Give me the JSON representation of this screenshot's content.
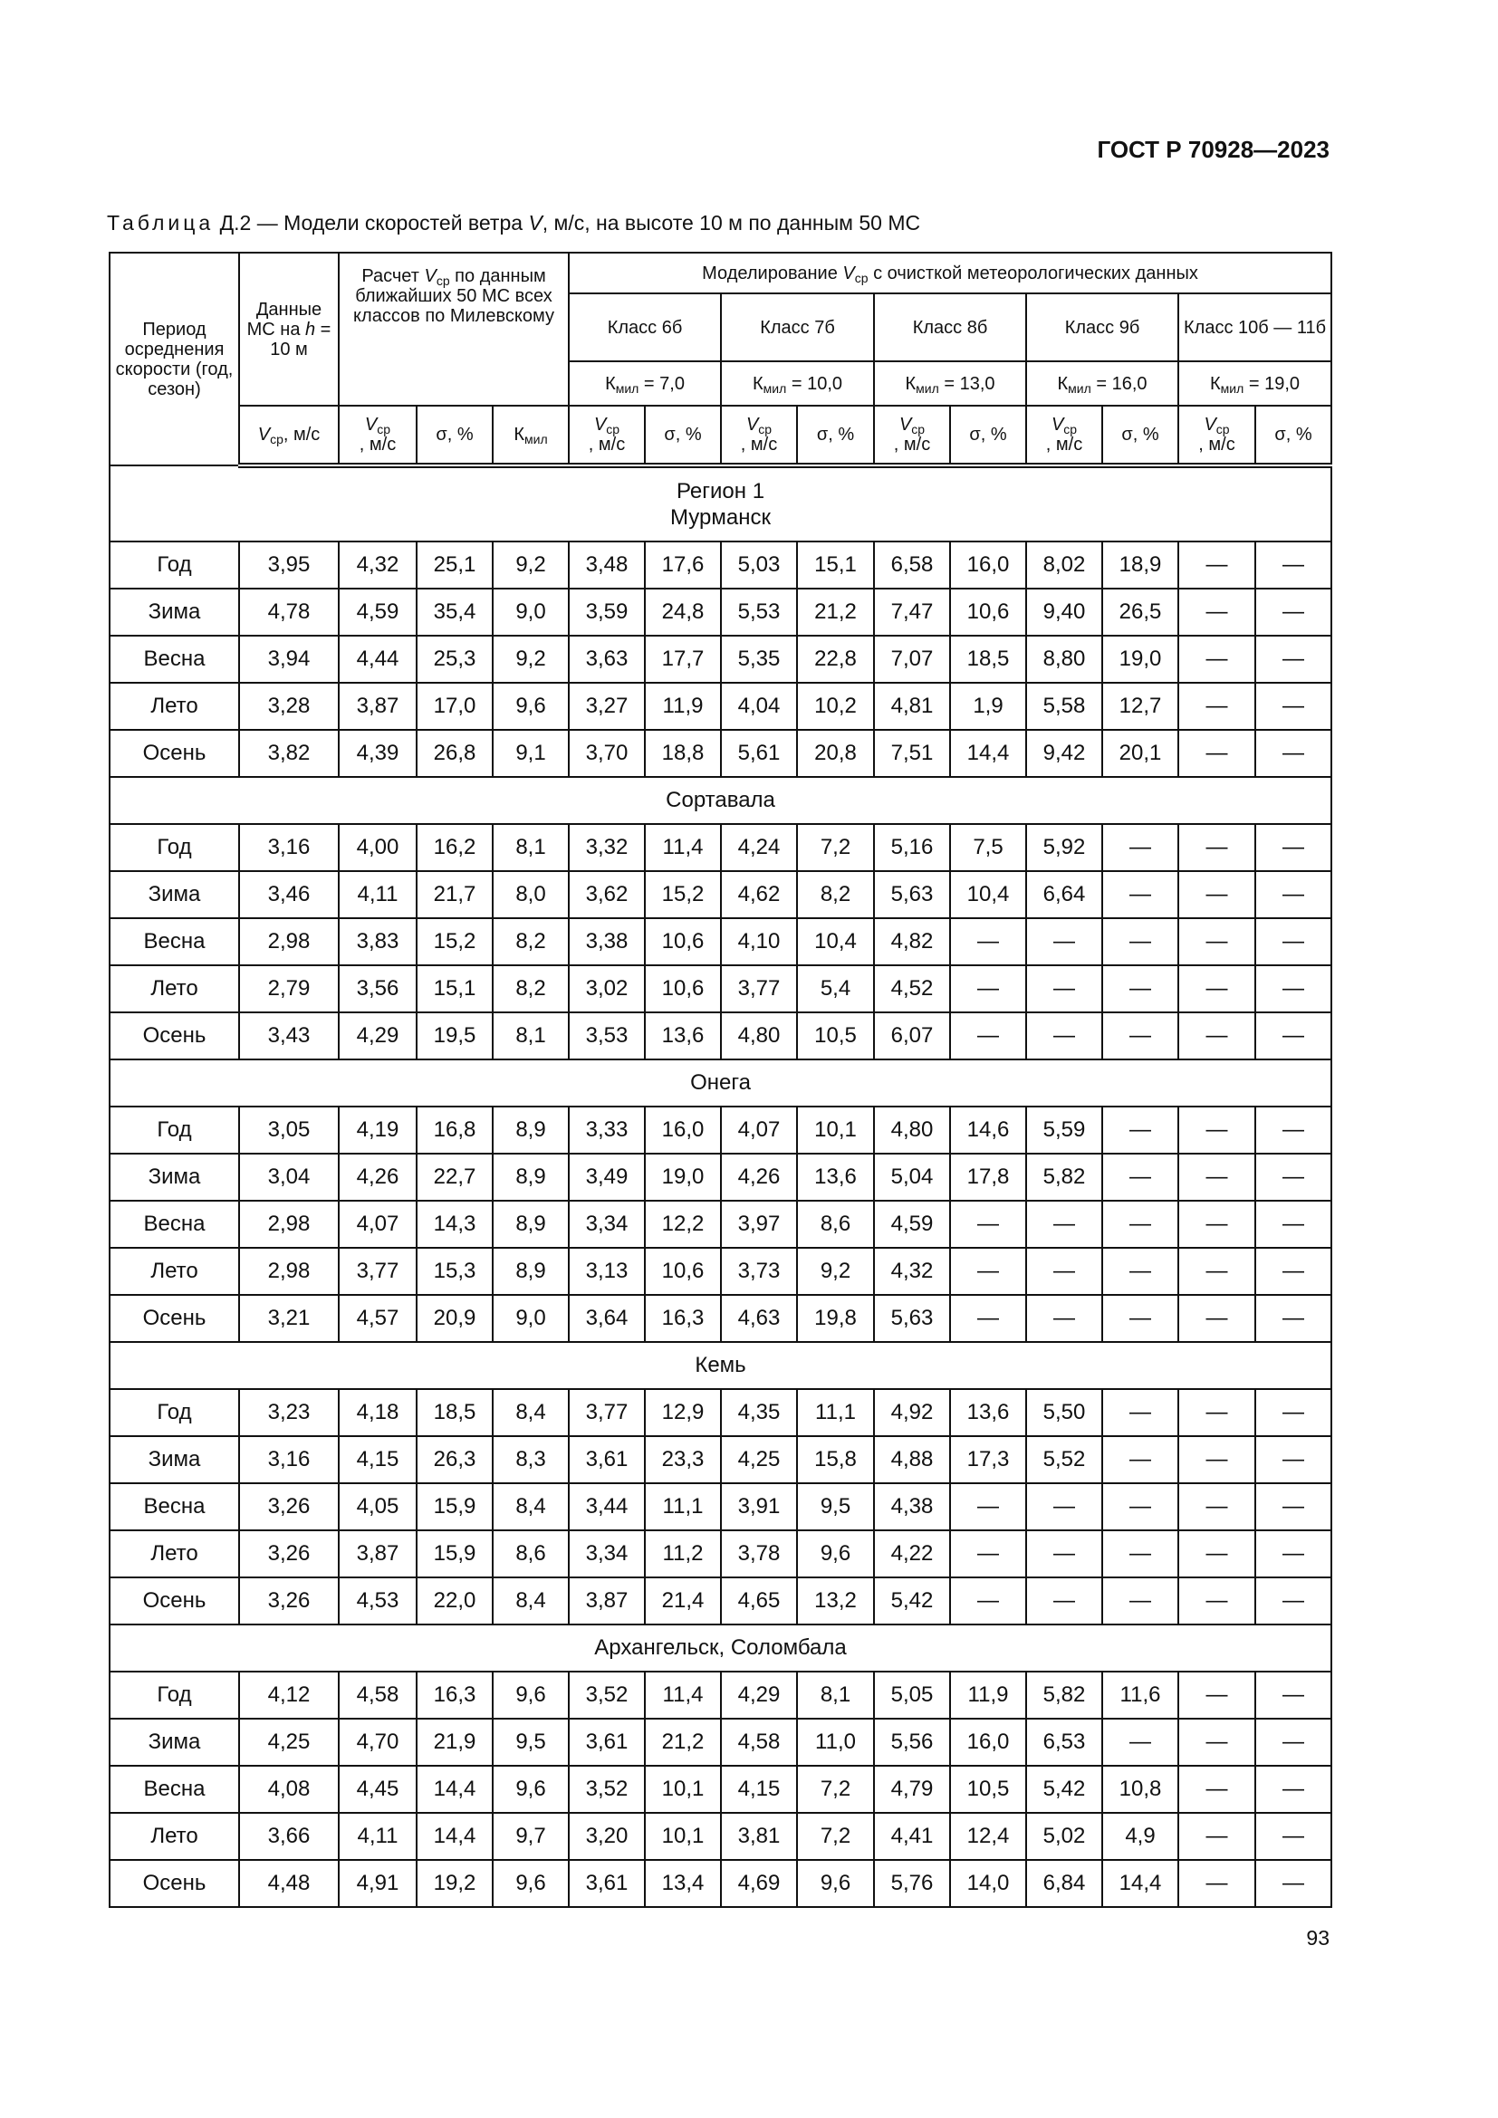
{
  "doc_code": "ГОСТ Р 70928—2023",
  "caption": {
    "word": "Таблица",
    "rest_pre": " Д.2 — Модели скоростей ветра ",
    "v": "V",
    "rest_post": ", м/с, на высоте 10 м по данным 50 МС"
  },
  "header": {
    "period": "Период осреднения скорости (год, сезон)",
    "ms_data_pre": "Данные МС на ",
    "ms_data_h": "h",
    "ms_data_post": " = 10 м",
    "calc_pre": "Расчет ",
    "calc_v": "V",
    "calc_sub": "ср",
    "calc_post": " по данным ближайших 50 МС всех классов по Милевскому",
    "model_pre": "Моделирование ",
    "model_v": "V",
    "model_sub": "ср",
    "model_post": " с очисткой метеорологических данных",
    "classes": [
      {
        "name": "Класс 6б",
        "k": "К",
        "k_sub": "мил",
        "k_val": " = 7,0"
      },
      {
        "name": "Класс 7б",
        "k": "К",
        "k_sub": "мил",
        "k_val": " = 10,0"
      },
      {
        "name": "Класс 8б",
        "k": "К",
        "k_sub": "мил",
        "k_val": " = 13,0"
      },
      {
        "name": "Класс 9б",
        "k": "К",
        "k_sub": "мил",
        "k_val": " = 16,0"
      },
      {
        "name": "Класс 10б — 11б",
        "k": "К",
        "k_sub": "мил",
        "k_val": " = 19,0"
      }
    ],
    "sub_v": "V",
    "sub_v_sub": "ср",
    "sub_v_unit_inline": ", м/с",
    "sub_v_unit": ", м/с",
    "sigma": "σ, %",
    "kmil": "К",
    "kmil_sub": "мил"
  },
  "sections": [
    {
      "title": [
        "Регион 1",
        "Мурманск"
      ],
      "rows": [
        {
          "period": "Год",
          "values": [
            "3,95",
            "4,32",
            "25,1",
            "9,2",
            "3,48",
            "17,6",
            "5,03",
            "15,1",
            "6,58",
            "16,0",
            "8,02",
            "18,9",
            "—",
            "—"
          ]
        },
        {
          "period": "Зима",
          "values": [
            "4,78",
            "4,59",
            "35,4",
            "9,0",
            "3,59",
            "24,8",
            "5,53",
            "21,2",
            "7,47",
            "10,6",
            "9,40",
            "26,5",
            "—",
            "—"
          ]
        },
        {
          "period": "Весна",
          "values": [
            "3,94",
            "4,44",
            "25,3",
            "9,2",
            "3,63",
            "17,7",
            "5,35",
            "22,8",
            "7,07",
            "18,5",
            "8,80",
            "19,0",
            "—",
            "—"
          ]
        },
        {
          "period": "Лето",
          "values": [
            "3,28",
            "3,87",
            "17,0",
            "9,6",
            "3,27",
            "11,9",
            "4,04",
            "10,2",
            "4,81",
            "1,9",
            "5,58",
            "12,7",
            "—",
            "—"
          ]
        },
        {
          "period": "Осень",
          "values": [
            "3,82",
            "4,39",
            "26,8",
            "9,1",
            "3,70",
            "18,8",
            "5,61",
            "20,8",
            "7,51",
            "14,4",
            "9,42",
            "20,1",
            "—",
            "—"
          ]
        }
      ]
    },
    {
      "title": [
        "Сортавала"
      ],
      "rows": [
        {
          "period": "Год",
          "values": [
            "3,16",
            "4,00",
            "16,2",
            "8,1",
            "3,32",
            "11,4",
            "4,24",
            "7,2",
            "5,16",
            "7,5",
            "5,92",
            "—",
            "—",
            "—"
          ]
        },
        {
          "period": "Зима",
          "values": [
            "3,46",
            "4,11",
            "21,7",
            "8,0",
            "3,62",
            "15,2",
            "4,62",
            "8,2",
            "5,63",
            "10,4",
            "6,64",
            "—",
            "—",
            "—"
          ]
        },
        {
          "period": "Весна",
          "values": [
            "2,98",
            "3,83",
            "15,2",
            "8,2",
            "3,38",
            "10,6",
            "4,10",
            "10,4",
            "4,82",
            "—",
            "—",
            "—",
            "—",
            "—"
          ]
        },
        {
          "period": "Лето",
          "values": [
            "2,79",
            "3,56",
            "15,1",
            "8,2",
            "3,02",
            "10,6",
            "3,77",
            "5,4",
            "4,52",
            "—",
            "—",
            "—",
            "—",
            "—"
          ]
        },
        {
          "period": "Осень",
          "values": [
            "3,43",
            "4,29",
            "19,5",
            "8,1",
            "3,53",
            "13,6",
            "4,80",
            "10,5",
            "6,07",
            "—",
            "—",
            "—",
            "—",
            "—"
          ]
        }
      ]
    },
    {
      "title": [
        "Онега"
      ],
      "rows": [
        {
          "period": "Год",
          "values": [
            "3,05",
            "4,19",
            "16,8",
            "8,9",
            "3,33",
            "16,0",
            "4,07",
            "10,1",
            "4,80",
            "14,6",
            "5,59",
            "—",
            "—",
            "—"
          ]
        },
        {
          "period": "Зима",
          "values": [
            "3,04",
            "4,26",
            "22,7",
            "8,9",
            "3,49",
            "19,0",
            "4,26",
            "13,6",
            "5,04",
            "17,8",
            "5,82",
            "—",
            "—",
            "—"
          ]
        },
        {
          "period": "Весна",
          "values": [
            "2,98",
            "4,07",
            "14,3",
            "8,9",
            "3,34",
            "12,2",
            "3,97",
            "8,6",
            "4,59",
            "—",
            "—",
            "—",
            "—",
            "—"
          ]
        },
        {
          "period": "Лето",
          "values": [
            "2,98",
            "3,77",
            "15,3",
            "8,9",
            "3,13",
            "10,6",
            "3,73",
            "9,2",
            "4,32",
            "—",
            "—",
            "—",
            "—",
            "—"
          ]
        },
        {
          "period": "Осень",
          "values": [
            "3,21",
            "4,57",
            "20,9",
            "9,0",
            "3,64",
            "16,3",
            "4,63",
            "19,8",
            "5,63",
            "—",
            "—",
            "—",
            "—",
            "—"
          ]
        }
      ]
    },
    {
      "title": [
        "Кемь"
      ],
      "rows": [
        {
          "period": "Год",
          "values": [
            "3,23",
            "4,18",
            "18,5",
            "8,4",
            "3,77",
            "12,9",
            "4,35",
            "11,1",
            "4,92",
            "13,6",
            "5,50",
            "—",
            "—",
            "—"
          ]
        },
        {
          "period": "Зима",
          "values": [
            "3,16",
            "4,15",
            "26,3",
            "8,3",
            "3,61",
            "23,3",
            "4,25",
            "15,8",
            "4,88",
            "17,3",
            "5,52",
            "—",
            "—",
            "—"
          ]
        },
        {
          "period": "Весна",
          "values": [
            "3,26",
            "4,05",
            "15,9",
            "8,4",
            "3,44",
            "11,1",
            "3,91",
            "9,5",
            "4,38",
            "—",
            "—",
            "—",
            "—",
            "—"
          ]
        },
        {
          "period": "Лето",
          "values": [
            "3,26",
            "3,87",
            "15,9",
            "8,6",
            "3,34",
            "11,2",
            "3,78",
            "9,6",
            "4,22",
            "—",
            "—",
            "—",
            "—",
            "—"
          ]
        },
        {
          "period": "Осень",
          "values": [
            "3,26",
            "4,53",
            "22,0",
            "8,4",
            "3,87",
            "21,4",
            "4,65",
            "13,2",
            "5,42",
            "—",
            "—",
            "—",
            "—",
            "—"
          ]
        }
      ]
    },
    {
      "title": [
        "Архангельск, Соломбала"
      ],
      "rows": [
        {
          "period": "Год",
          "values": [
            "4,12",
            "4,58",
            "16,3",
            "9,6",
            "3,52",
            "11,4",
            "4,29",
            "8,1",
            "5,05",
            "11,9",
            "5,82",
            "11,6",
            "—",
            "—"
          ]
        },
        {
          "period": "Зима",
          "values": [
            "4,25",
            "4,70",
            "21,9",
            "9,5",
            "3,61",
            "21,2",
            "4,58",
            "11,0",
            "5,56",
            "16,0",
            "6,53",
            "—",
            "—",
            "—"
          ]
        },
        {
          "period": "Весна",
          "values": [
            "4,08",
            "4,45",
            "14,4",
            "9,6",
            "3,52",
            "10,1",
            "4,15",
            "7,2",
            "4,79",
            "10,5",
            "5,42",
            "10,8",
            "—",
            "—"
          ]
        },
        {
          "period": "Лето",
          "values": [
            "3,66",
            "4,11",
            "14,4",
            "9,7",
            "3,20",
            "10,1",
            "3,81",
            "7,2",
            "4,41",
            "12,4",
            "5,02",
            "4,9",
            "—",
            "—"
          ]
        },
        {
          "period": "Осень",
          "values": [
            "4,48",
            "4,91",
            "19,2",
            "9,6",
            "3,61",
            "13,4",
            "4,69",
            "9,6",
            "5,76",
            "14,0",
            "6,84",
            "14,4",
            "—",
            "—"
          ]
        }
      ]
    }
  ],
  "page_number": "93"
}
